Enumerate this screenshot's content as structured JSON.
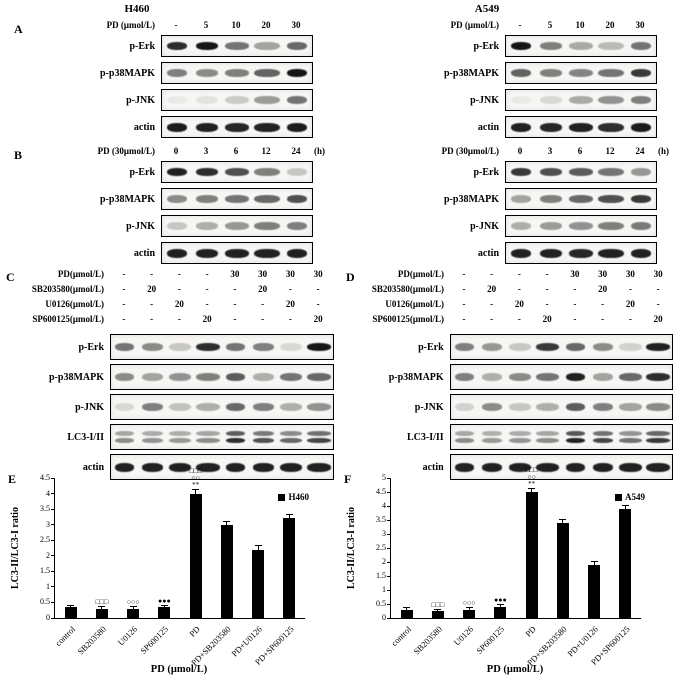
{
  "figure": {
    "column_titles": [
      "H460",
      "A549"
    ],
    "panels": {
      "A": {
        "label": "A",
        "header": {
          "label": "PD (μmol/L)",
          "lanes": [
            "-",
            "5",
            "10",
            "20",
            "30"
          ],
          "suffix": ""
        },
        "groups": [
          {
            "cell_line": "H460",
            "rows": [
              {
                "name": "p-Erk",
                "bands": [
                  0.85,
                  0.95,
                  0.55,
                  0.35,
                  0.6
                ]
              },
              {
                "name": "p-p38MAPK",
                "bands": [
                  0.5,
                  0.45,
                  0.5,
                  0.62,
                  0.95
                ]
              },
              {
                "name": "p-JNK",
                "bands": [
                  0.05,
                  0.08,
                  0.18,
                  0.38,
                  0.55
                ]
              },
              {
                "name": "actin",
                "bands": [
                  0.92,
                  0.9,
                  0.88,
                  0.9,
                  0.92
                ]
              }
            ]
          },
          {
            "cell_line": "A549",
            "rows": [
              {
                "name": "p-Erk",
                "bands": [
                  0.95,
                  0.5,
                  0.32,
                  0.25,
                  0.55
                ]
              },
              {
                "name": "p-p38MAPK",
                "bands": [
                  0.62,
                  0.5,
                  0.48,
                  0.55,
                  0.8
                ]
              },
              {
                "name": "p-JNK",
                "bands": [
                  0.05,
                  0.12,
                  0.32,
                  0.42,
                  0.5
                ]
              },
              {
                "name": "actin",
                "bands": [
                  0.9,
                  0.88,
                  0.9,
                  0.85,
                  0.92
                ]
              }
            ]
          }
        ]
      },
      "B": {
        "label": "B",
        "header": {
          "label": "PD (30μmol/L)",
          "lanes": [
            "0",
            "3",
            "6",
            "12",
            "24"
          ],
          "suffix": "(h)"
        },
        "groups": [
          {
            "cell_line": "H460",
            "rows": [
              {
                "name": "p-Erk",
                "bands": [
                  0.9,
                  0.85,
                  0.7,
                  0.5,
                  0.2
                ]
              },
              {
                "name": "p-p38MAPK",
                "bands": [
                  0.45,
                  0.5,
                  0.55,
                  0.6,
                  0.7
                ]
              },
              {
                "name": "p-JNK",
                "bands": [
                  0.2,
                  0.3,
                  0.4,
                  0.5,
                  0.5
                ]
              },
              {
                "name": "actin",
                "bands": [
                  0.9,
                  0.9,
                  0.9,
                  0.9,
                  0.9
                ]
              }
            ]
          },
          {
            "cell_line": "A549",
            "rows": [
              {
                "name": "p-Erk",
                "bands": [
                  0.8,
                  0.7,
                  0.65,
                  0.55,
                  0.4
                ]
              },
              {
                "name": "p-p38MAPK",
                "bands": [
                  0.35,
                  0.5,
                  0.6,
                  0.7,
                  0.8
                ]
              },
              {
                "name": "p-JNK",
                "bands": [
                  0.3,
                  0.38,
                  0.42,
                  0.5,
                  0.52
                ]
              },
              {
                "name": "actin",
                "bands": [
                  0.9,
                  0.9,
                  0.88,
                  0.9,
                  0.9
                ]
              }
            ]
          }
        ]
      },
      "C": {
        "label": "C",
        "cell_line": "H460",
        "treatments": [
          {
            "label": "PD(μmol/L)",
            "values": [
              "-",
              "-",
              "-",
              "-",
              "30",
              "30",
              "30",
              "30"
            ]
          },
          {
            "label": "SB203580(μmol/L)",
            "values": [
              "-",
              "20",
              "-",
              "-",
              "-",
              "20",
              "-",
              "-"
            ]
          },
          {
            "label": "U0126(μmol/L)",
            "values": [
              "-",
              "-",
              "20",
              "-",
              "-",
              "-",
              "20",
              "-"
            ]
          },
          {
            "label": "SP600125(μmol/L)",
            "values": [
              "-",
              "-",
              "-",
              "20",
              "-",
              "-",
              "-",
              "20"
            ]
          }
        ],
        "rows": [
          {
            "name": "p-Erk",
            "bands": [
              0.55,
              0.45,
              0.2,
              0.85,
              0.55,
              0.5,
              0.12,
              0.95
            ]
          },
          {
            "name": "p-p38MAPK",
            "bands": [
              0.45,
              0.35,
              0.42,
              0.5,
              0.65,
              0.3,
              0.55,
              0.6
            ]
          },
          {
            "name": "p-JNK",
            "bands": [
              0.12,
              0.5,
              0.22,
              0.3,
              0.6,
              0.5,
              0.3,
              0.42
            ]
          },
          {
            "name": "LC3-I/II",
            "double": true,
            "bands": [
              0.45,
              0.42,
              0.4,
              0.45,
              0.85,
              0.7,
              0.6,
              0.75
            ]
          },
          {
            "name": "actin",
            "bands": [
              0.9,
              0.9,
              0.9,
              0.9,
              0.9,
              0.9,
              0.9,
              0.9
            ]
          }
        ]
      },
      "D": {
        "label": "D",
        "cell_line": "A549",
        "treatments": [
          {
            "label": "PD(μmol/L)",
            "values": [
              "-",
              "-",
              "-",
              "-",
              "30",
              "30",
              "30",
              "30"
            ]
          },
          {
            "label": "SB203580(μmol/L)",
            "values": [
              "-",
              "20",
              "-",
              "-",
              "-",
              "20",
              "-",
              "-"
            ]
          },
          {
            "label": "U0126(μmol/L)",
            "values": [
              "-",
              "-",
              "20",
              "-",
              "-",
              "-",
              "20",
              "-"
            ]
          },
          {
            "label": "SP600125(μmol/L)",
            "values": [
              "-",
              "-",
              "-",
              "20",
              "-",
              "-",
              "-",
              "20"
            ]
          }
        ],
        "rows": [
          {
            "name": "p-Erk",
            "bands": [
              0.5,
              0.4,
              0.2,
              0.8,
              0.6,
              0.45,
              0.15,
              0.9
            ]
          },
          {
            "name": "p-p38MAPK",
            "bands": [
              0.5,
              0.3,
              0.45,
              0.55,
              0.9,
              0.35,
              0.6,
              0.85
            ]
          },
          {
            "name": "p-JNK",
            "bands": [
              0.15,
              0.45,
              0.2,
              0.3,
              0.65,
              0.5,
              0.35,
              0.45
            ]
          },
          {
            "name": "LC3-I/II",
            "double": true,
            "bands": [
              0.45,
              0.4,
              0.42,
              0.45,
              0.9,
              0.75,
              0.55,
              0.8
            ]
          },
          {
            "name": "actin",
            "bands": [
              0.9,
              0.9,
              0.9,
              0.9,
              0.9,
              0.9,
              0.9,
              0.9
            ]
          }
        ]
      },
      "E": {
        "label": "E"
      },
      "F": {
        "label": "F"
      }
    }
  },
  "chart_data": [
    {
      "type": "bar",
      "panel": "E",
      "legend": "H460",
      "bar_color": "#000000",
      "categories": [
        "control",
        "SB203580",
        "U0126",
        "SP600125",
        "PD",
        "PD+SB203580",
        "PD+U0126",
        "PD+SP600125"
      ],
      "values": [
        0.35,
        0.3,
        0.3,
        0.35,
        4.0,
        3.0,
        2.2,
        3.2
      ],
      "errors": [
        0.05,
        0.05,
        0.05,
        0.05,
        0.12,
        0.1,
        0.1,
        0.1
      ],
      "annotations": [
        [],
        [
          "□□□"
        ],
        [
          "○○○"
        ],
        [
          "●●●"
        ],
        [
          "□□□",
          "○○",
          "**"
        ],
        [],
        [],
        []
      ],
      "title": "",
      "xlabel": "PD (μmol/L)",
      "ylabel": "LC3-II/LC3-I ratio",
      "ylim": [
        0,
        4.5
      ],
      "ytick_step": 0.5,
      "yticks": [
        "0",
        "0.5",
        "1",
        "1.5",
        "2",
        "2.5",
        "3",
        "3.5",
        "4",
        "4.5"
      ],
      "legend_position": "top-right",
      "grid": false
    },
    {
      "type": "bar",
      "panel": "F",
      "legend": "A549",
      "bar_color": "#000000",
      "categories": [
        "control",
        "SB203580",
        "U0126",
        "SP600125",
        "PD",
        "PD+SB203580",
        "PD+U0126",
        "PD+SP600125"
      ],
      "values": [
        0.3,
        0.25,
        0.3,
        0.4,
        4.5,
        3.4,
        1.9,
        3.9
      ],
      "errors": [
        0.05,
        0.05,
        0.05,
        0.05,
        0.12,
        0.1,
        0.1,
        0.1
      ],
      "annotations": [
        [],
        [
          "□□□"
        ],
        [
          "○○○"
        ],
        [
          "●●●"
        ],
        [
          "□□□",
          "○○",
          "**"
        ],
        [],
        [],
        []
      ],
      "title": "",
      "xlabel": "PD (μmol/L)",
      "ylabel": "LC3-II/LC3-I ratio",
      "ylim": [
        0,
        5
      ],
      "ytick_step": 0.5,
      "yticks": [
        "0",
        "0.5",
        "1",
        "1.5",
        "2",
        "2.5",
        "3",
        "3.5",
        "4",
        "4.5",
        "5"
      ],
      "legend_position": "top-right",
      "grid": false
    }
  ]
}
